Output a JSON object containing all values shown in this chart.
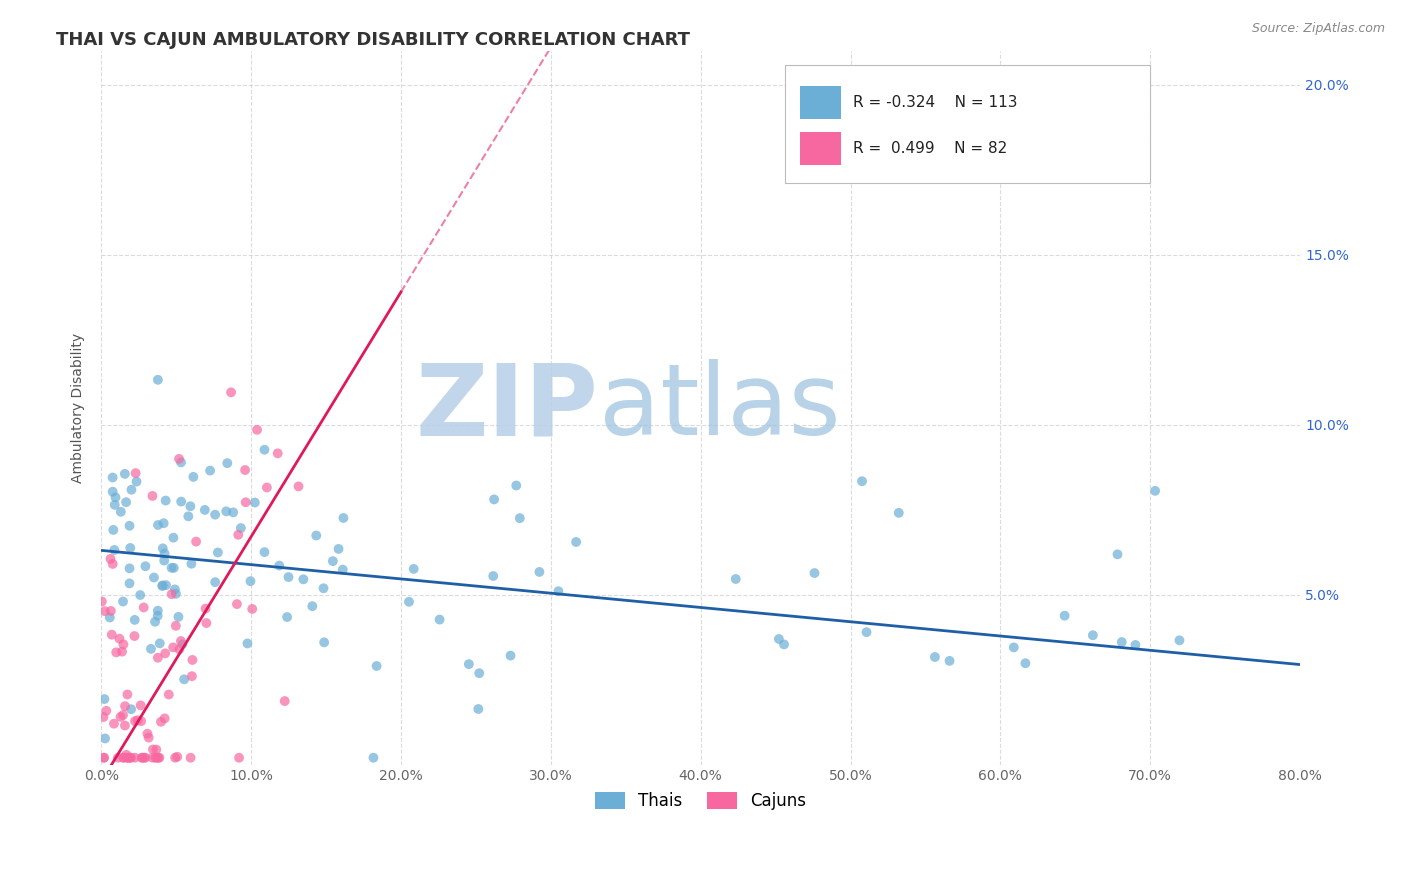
{
  "title": "THAI VS CAJUN AMBULATORY DISABILITY CORRELATION CHART",
  "source_text": "Source: ZipAtlas.com",
  "ylabel": "Ambulatory Disability",
  "xlim": [
    0.0,
    0.8
  ],
  "ylim": [
    0.0,
    0.21
  ],
  "xticks": [
    0.0,
    0.1,
    0.2,
    0.3,
    0.4,
    0.5,
    0.6,
    0.7,
    0.8
  ],
  "xticklabels": [
    "0.0%",
    "10.0%",
    "20.0%",
    "30.0%",
    "40.0%",
    "50.0%",
    "60.0%",
    "70.0%",
    "80.0%"
  ],
  "yticks": [
    0.0,
    0.05,
    0.1,
    0.15,
    0.2
  ],
  "yticklabels_right": [
    "",
    "5.0%",
    "10.0%",
    "15.0%",
    "20.0%"
  ],
  "thai_color": "#6baed6",
  "thai_line_color": "#1f5fa6",
  "cajun_color": "#f768a1",
  "cajun_line_color": "#e0195a",
  "thai_R": -0.324,
  "thai_N": 113,
  "cajun_R": 0.499,
  "cajun_N": 82,
  "watermark_zip": "ZIP",
  "watermark_atlas": "atlas",
  "watermark_color_zip": "#c5d9ee",
  "watermark_color_atlas": "#a8c8e8",
  "title_fontsize": 13,
  "axis_label_fontsize": 10,
  "tick_fontsize": 10,
  "source_fontsize": 9,
  "background_color": "#ffffff",
  "grid_color": "#cccccc",
  "grid_style": "--",
  "grid_alpha": 0.7,
  "thai_line_intercept": 0.063,
  "thai_line_slope": -0.042,
  "cajun_line_intercept": -0.005,
  "cajun_line_slope": 0.72
}
